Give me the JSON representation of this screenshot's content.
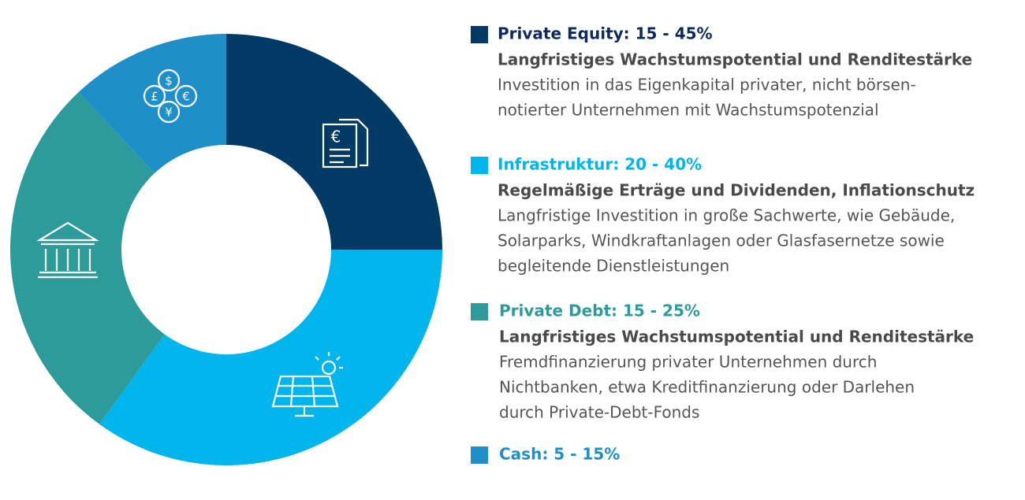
{
  "chart_data": {
    "type": "pie",
    "categories": [
      "Private Equity: 15 - 45%",
      "Infrastruktur: 20 - 40%",
      "Private Debt: 15 - 25%",
      "Cash: 5 - 15%"
    ],
    "values": [
      25,
      35,
      28,
      12
    ],
    "colors": [
      "#023a66",
      "#00b5ec",
      "#2e9b9b",
      "#1f8fc8"
    ],
    "label_colors": [
      "#0d2a5c",
      "#00b5ec",
      "#2e9b9b",
      "#1f8fc8"
    ],
    "details": [
      {
        "headline": "Langfristiges Wachstumspotential und Renditestärke",
        "lines": [
          "Investition in das Eigenkapital privater, nicht börsen-",
          "notierter Unternehmen mit Wachstumspotenzial"
        ]
      },
      {
        "headline": "Regelmäßige Erträge und Dividenden, Inflationschutz",
        "lines": [
          "Langfristige Investition in große Sachwerte, wie Gebäude,",
          "Solarparks, Windkraftanlagen oder Glasfasernetze sowie",
          "begleitende Dienstleistungen"
        ]
      },
      {
        "headline": "Langfristiges Wachstumspotential und Renditestärke",
        "lines": [
          "Fremdfinanzierung privater Unternehmen durch",
          "Nichtbanken, etwa Kreditfinanzierung oder Darlehen",
          "durch Private-Debt-Fonds"
        ]
      }
    ]
  }
}
